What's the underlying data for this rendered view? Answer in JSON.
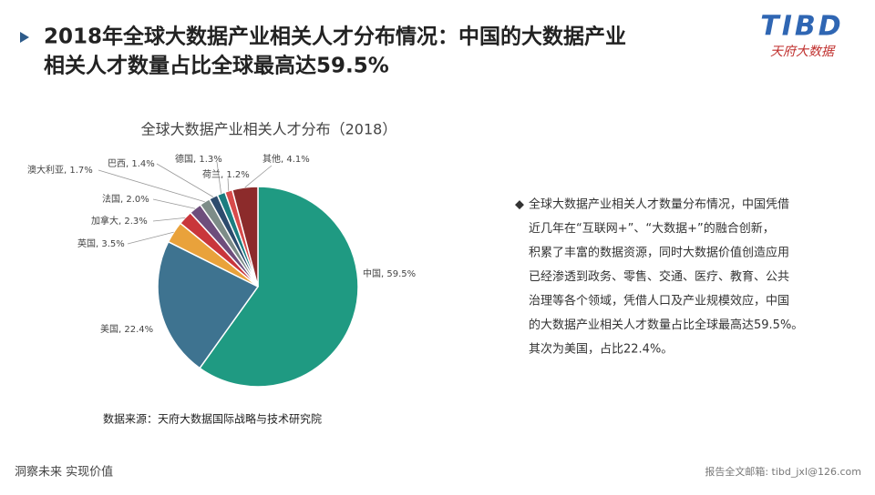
{
  "header": {
    "title_lines": [
      "2018年全球大数据产业相关人才分布情况：中国的大数据产业",
      "相关人才数量占比全球最高达59.5%"
    ],
    "logo": "TIBD",
    "logo_sub": "天府大数据"
  },
  "chart_data": {
    "type": "pie",
    "title": "全球大数据产业相关人才分布（2018）",
    "values": [
      59.5,
      22.4,
      3.5,
      2.3,
      2.0,
      1.7,
      1.4,
      1.3,
      1.2,
      4.1
    ],
    "value_labels": [
      "中国, 59.5%",
      "美国, 22.4%",
      "英国, 3.5%",
      "加拿大, 2.3%",
      "法国, 2.0%",
      "澳大利亚, 1.7%",
      "巴西, 1.4%",
      "德国, 1.3%",
      "荷兰, 1.2%",
      "其他, 4.1%"
    ],
    "colors": [
      "#1f9a82",
      "#3e7390",
      "#e9a23b",
      "#c9363b",
      "#6e4e7c",
      "#7d8c88",
      "#2d4b6d",
      "#1c7d80",
      "#d84b4b",
      "#8c2b2b"
    ],
    "source": "数据来源：天府大数据国际战略与技术研究院"
  },
  "description": [
    "全球大数据产业相关人才数量分布情况，中国凭借",
    "近几年在“互联网+”、“大数据+”的融合创新，",
    "积累了丰富的数据资源，同时大数据价值创造应用",
    "已经渗透到政务、零售、交通、医疗、教育、公共",
    "治理等各个领域，凭借人口及产业规模效应，中国",
    "的大数据产业相关人才数量占比全球最高达59.5%。",
    "其次为美国，占比22.4%。"
  ],
  "footer": {
    "left": "洞察未来 实现价值",
    "right": "报告全文邮箱: tibd_jxl@126.com"
  }
}
